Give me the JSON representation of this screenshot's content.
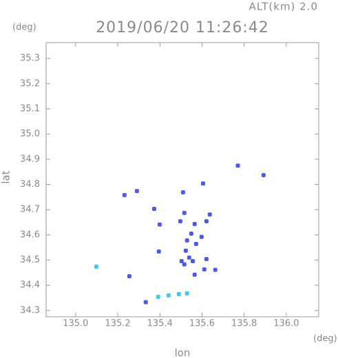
{
  "chart_data": {
    "type": "scatter",
    "title": "2019/06/20 11:26:42",
    "subtitle": "ALT(km) 2.0",
    "x_label": "lon",
    "y_label": "lat",
    "x_unit": "(deg)",
    "y_unit": "(deg)",
    "xlim": [
      134.86,
      136.154
    ],
    "ylim": [
      34.275,
      35.363
    ],
    "xticks": [
      {
        "value": 135.0,
        "label": "135.0"
      },
      135.2,
      135.4,
      135.6,
      135.8,
      {
        "value": 136.0,
        "label": "136.0"
      }
    ],
    "yticks": [
      34.3,
      34.4,
      34.5,
      34.6,
      34.7,
      34.8,
      34.9,
      {
        "value": 35.0,
        "label": "35.0"
      },
      35.1,
      35.2,
      35.3
    ],
    "grid": false,
    "series": [
      {
        "color": "#4a5af0",
        "x": [
          135.77,
          135.892,
          135.605,
          135.291,
          135.232,
          135.51,
          135.399,
          135.373,
          135.516,
          135.637,
          135.621,
          135.549,
          135.572,
          135.523,
          135.539,
          135.516,
          135.556,
          135.621,
          135.395,
          135.663,
          135.611,
          135.565,
          135.255,
          135.333,
          135.503,
          135.529,
          135.598,
          135.497,
          135.565
        ],
        "y": [
          34.875,
          34.837,
          34.804,
          34.774,
          34.758,
          34.769,
          34.641,
          34.703,
          34.687,
          34.681,
          34.654,
          34.605,
          34.564,
          34.537,
          34.51,
          34.483,
          34.496,
          34.504,
          34.534,
          34.461,
          34.463,
          34.442,
          34.436,
          34.333,
          34.496,
          34.578,
          34.592,
          34.654,
          34.643
        ]
      },
      {
        "color": "#40c8f0",
        "x": [
          135.098,
          135.392,
          135.441,
          135.49,
          135.529
        ],
        "y": [
          34.474,
          34.354,
          34.36,
          34.365,
          34.368
        ]
      }
    ]
  }
}
